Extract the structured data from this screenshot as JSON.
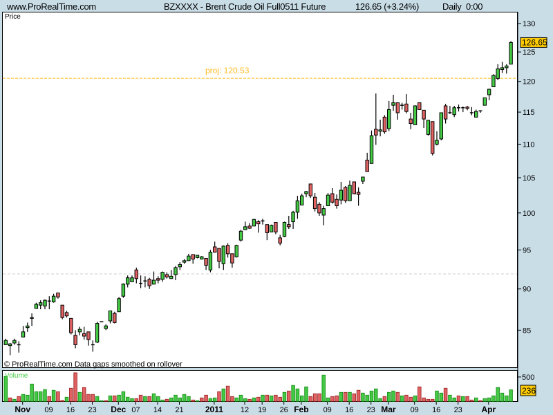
{
  "header": {
    "site": "www.ProRealTime.com",
    "title": "BZXXXX - Brent Crude Oil Full0511 Future",
    "quote": "126.65 (+3.24%)",
    "period": "Daily  0:00"
  },
  "price_panel": {
    "label": "Price",
    "footer": "© ProRealTime.com  Data gaps smoothed on rollover",
    "last_price_label": "126.65",
    "projection_label": "proj: 120.53",
    "projection_value": 120.53,
    "reference_line_value": 91.9
  },
  "volume_panel": {
    "label": "Volume",
    "last_volume_label": "236",
    "tick_label": "500"
  },
  "colors": {
    "up": "#44c944",
    "down": "#e06262",
    "projection": "#ffbb22",
    "reference": "#cccccc",
    "label_bg": "#ffcc00",
    "volume_text": "#44cc44",
    "axis_bg": "#c9dde7"
  },
  "chart_data": {
    "type": "candlestick",
    "y_scale": "log",
    "y_range": [
      80.7,
      132.1
    ],
    "y_ticks": [
      85,
      90,
      95,
      100,
      105,
      110,
      115,
      120,
      125,
      130
    ],
    "volume_range": [
      0,
      627
    ],
    "volume_ticks": [
      500
    ],
    "x_labels": [
      {
        "label": "Nov",
        "bar": 4,
        "major": true
      },
      {
        "label": "09",
        "bar": 10
      },
      {
        "label": "16",
        "bar": 15
      },
      {
        "label": "23",
        "bar": 20
      },
      {
        "label": "Dec",
        "bar": 26,
        "major": true
      },
      {
        "label": "07",
        "bar": 30
      },
      {
        "label": "14",
        "bar": 35
      },
      {
        "label": "21",
        "bar": 40
      },
      {
        "label": "2011",
        "bar": 48,
        "major": true
      },
      {
        "label": "12",
        "bar": 55
      },
      {
        "label": "19",
        "bar": 59
      },
      {
        "label": "26",
        "bar": 64
      },
      {
        "label": "Feb",
        "bar": 68,
        "major": true
      },
      {
        "label": "09",
        "bar": 74
      },
      {
        "label": "16",
        "bar": 79
      },
      {
        "label": "23",
        "bar": 84
      },
      {
        "label": "Mar",
        "bar": 88,
        "major": true
      },
      {
        "label": "09",
        "bar": 94
      },
      {
        "label": "16",
        "bar": 99
      },
      {
        "label": "23",
        "bar": 104
      },
      {
        "label": "Apr",
        "bar": 111,
        "major": true
      }
    ],
    "ohlc_fields": [
      "open",
      "high",
      "low",
      "close"
    ],
    "candles": [
      [
        83.3,
        84.0,
        83.3,
        83.8
      ],
      [
        83.2,
        83.5,
        82.1,
        83.4
      ],
      [
        83.5,
        84.0,
        83.3,
        83.8
      ],
      [
        83.3,
        83.7,
        82.4,
        83.3
      ],
      [
        84.2,
        85.5,
        84.2,
        84.8
      ],
      [
        85.3,
        85.9,
        84.8,
        85.5
      ],
      [
        86.4,
        87.0,
        85.5,
        86.5
      ],
      [
        87.6,
        88.3,
        87.6,
        88.1
      ],
      [
        88.0,
        88.6,
        87.5,
        88.3
      ],
      [
        87.9,
        88.7,
        87.5,
        88.6
      ],
      [
        88.5,
        89.1,
        87.5,
        88.5
      ],
      [
        88.4,
        89.4,
        88.3,
        89.1
      ],
      [
        89.5,
        89.5,
        88.8,
        89.0
      ],
      [
        88.0,
        88.0,
        86.3,
        86.5
      ],
      [
        87.1,
        87.3,
        86.5,
        86.7
      ],
      [
        86.4,
        86.4,
        84.5,
        84.7
      ],
      [
        84.4,
        85.0,
        82.9,
        83.3
      ],
      [
        84.8,
        85.4,
        84.4,
        85.1
      ],
      [
        84.6,
        85.4,
        83.9,
        84.3
      ],
      [
        84.8,
        84.8,
        83.2,
        83.9
      ],
      [
        83.3,
        83.8,
        82.5,
        83.3
      ],
      [
        83.6,
        86.0,
        83.5,
        85.8
      ],
      [
        86.0,
        86.0,
        86.0,
        86.0
      ],
      [
        85.2,
        85.7,
        85.0,
        85.5
      ],
      [
        86.1,
        87.3,
        85.8,
        87.3
      ],
      [
        87.0,
        87.2,
        85.8,
        85.9
      ],
      [
        87.2,
        89.0,
        87.2,
        88.8
      ],
      [
        89.1,
        90.7,
        88.9,
        90.6
      ],
      [
        90.6,
        91.7,
        90.2,
        91.4
      ],
      [
        90.9,
        91.7,
        90.9,
        91.4
      ],
      [
        92.4,
        92.7,
        90.7,
        91.3
      ],
      [
        90.7,
        91.7,
        90.1,
        90.7
      ],
      [
        91.0,
        91.6,
        90.2,
        91.0
      ],
      [
        91.2,
        91.4,
        90.0,
        90.4
      ],
      [
        90.6,
        92.2,
        90.6,
        91.1
      ],
      [
        91.3,
        91.6,
        90.7,
        91.1
      ],
      [
        91.2,
        92.2,
        90.9,
        92.1
      ],
      [
        91.8,
        92.1,
        91.3,
        91.5
      ],
      [
        91.3,
        92.4,
        91.3,
        91.6
      ],
      [
        91.8,
        92.9,
        91.1,
        92.7
      ],
      [
        92.8,
        93.4,
        92.4,
        93.1
      ],
      [
        93.4,
        93.8,
        93.2,
        93.6
      ],
      [
        93.6,
        94.5,
        93.6,
        94.2
      ],
      [
        94.4,
        94.4,
        93.2,
        93.8
      ],
      [
        94.0,
        94.3,
        93.9,
        94.3
      ],
      [
        93.8,
        94.2,
        93.8,
        94.1
      ],
      [
        93.9,
        93.9,
        92.4,
        93.0
      ],
      [
        92.4,
        95.0,
        92.1,
        94.7
      ],
      [
        95.4,
        96.1,
        94.7,
        94.7
      ],
      [
        95.2,
        95.2,
        92.6,
        93.5
      ],
      [
        93.2,
        95.6,
        92.4,
        95.5
      ],
      [
        95.6,
        95.9,
        94.0,
        94.5
      ],
      [
        94.5,
        94.5,
        92.7,
        93.3
      ],
      [
        94.1,
        95.7,
        94.0,
        95.6
      ],
      [
        96.3,
        97.7,
        96.1,
        97.5
      ],
      [
        97.7,
        98.8,
        97.7,
        98.1
      ],
      [
        98.2,
        98.6,
        97.8,
        97.9
      ],
      [
        98.2,
        99.2,
        98.2,
        99.1
      ],
      [
        98.8,
        99.0,
        97.3,
        98.5
      ],
      [
        98.9,
        99.2,
        98.4,
        98.9
      ],
      [
        98.4,
        98.4,
        96.3,
        97.3
      ],
      [
        97.4,
        98.4,
        97.4,
        98.3
      ],
      [
        98.7,
        98.7,
        97.1,
        97.4
      ],
      [
        96.6,
        97.0,
        95.6,
        95.9
      ],
      [
        96.8,
        98.8,
        96.7,
        98.7
      ],
      [
        98.4,
        99.6,
        97.8,
        98.1
      ],
      [
        98.8,
        100.3,
        97.8,
        100.1
      ],
      [
        100.1,
        102.4,
        99.2,
        101.7
      ],
      [
        101.1,
        102.7,
        101.1,
        102.4
      ],
      [
        102.7,
        103.1,
        102.2,
        103.0
      ],
      [
        104.1,
        104.1,
        102.1,
        102.4
      ],
      [
        102.2,
        102.8,
        100.2,
        100.6
      ],
      [
        101.2,
        101.5,
        99.6,
        100.0
      ],
      [
        99.7,
        101.0,
        98.3,
        100.6
      ],
      [
        101.0,
        102.8,
        101.0,
        102.5
      ],
      [
        102.7,
        103.5,
        101.3,
        101.5
      ],
      [
        101.9,
        102.6,
        100.6,
        101.0
      ],
      [
        101.8,
        104.4,
        101.2,
        103.2
      ],
      [
        103.6,
        103.8,
        101.4,
        101.7
      ],
      [
        101.7,
        104.6,
        101.7,
        103.9
      ],
      [
        104.4,
        104.4,
        102.6,
        102.7
      ],
      [
        102.9,
        103.6,
        101.0,
        102.6
      ],
      [
        104.5,
        105.1,
        104.1,
        105.1
      ],
      [
        107.6,
        108.7,
        105.9,
        105.9
      ],
      [
        107.1,
        112.1,
        107.1,
        111.3
      ],
      [
        112.3,
        118.0,
        109.9,
        111.4
      ],
      [
        112.0,
        113.8,
        111.2,
        112.2
      ],
      [
        114.2,
        114.5,
        111.6,
        111.9
      ],
      [
        112.4,
        116.8,
        112.0,
        115.4
      ],
      [
        116.1,
        117.8,
        115.2,
        116.5
      ],
      [
        116.5,
        116.5,
        113.8,
        114.9
      ],
      [
        116.1,
        116.5,
        115.4,
        116.1
      ],
      [
        116.3,
        117.9,
        114.8,
        115.1
      ],
      [
        113.9,
        114.9,
        112.3,
        113.2
      ],
      [
        113.0,
        116.1,
        113.0,
        116.0
      ],
      [
        116.5,
        116.5,
        115.4,
        115.4
      ],
      [
        115.3,
        115.3,
        112.5,
        113.9
      ],
      [
        111.5,
        113.7,
        111.3,
        113.7
      ],
      [
        113.5,
        113.5,
        108.3,
        108.6
      ],
      [
        110.0,
        112.0,
        109.8,
        110.6
      ],
      [
        110.8,
        114.9,
        110.6,
        114.9
      ],
      [
        116.0,
        116.3,
        113.2,
        113.9
      ],
      [
        114.9,
        116.0,
        114.7,
        114.9
      ],
      [
        114.6,
        116.0,
        114.2,
        115.7
      ],
      [
        115.7,
        116.2,
        115.1,
        115.7
      ],
      [
        115.7,
        115.9,
        115.0,
        115.7
      ],
      [
        115.8,
        116.0,
        115.3,
        115.6
      ],
      [
        114.9,
        115.8,
        114.5,
        114.9
      ],
      [
        114.2,
        115.4,
        114.2,
        115.1
      ],
      [
        115.2,
        115.3,
        114.9,
        115.2
      ],
      [
        116.1,
        117.3,
        116.1,
        117.3
      ],
      [
        117.8,
        118.8,
        116.9,
        118.7
      ],
      [
        119.1,
        121.2,
        119.1,
        121.0
      ],
      [
        120.5,
        122.9,
        120.2,
        122.1
      ],
      [
        122.0,
        123.3,
        121.4,
        122.3
      ],
      [
        122.3,
        122.9,
        121.3,
        122.6
      ],
      [
        122.9,
        126.9,
        122.9,
        126.65
      ]
    ],
    "volume": [
      510,
      71,
      42,
      99,
      142,
      127,
      354,
      198,
      198,
      241,
      99,
      227,
      198,
      19,
      85,
      269,
      585,
      184,
      283,
      142,
      142,
      99,
      14,
      14,
      113,
      113,
      127,
      198,
      85,
      57,
      57,
      127,
      99,
      99,
      156,
      99,
      28,
      42,
      71,
      127,
      71,
      142,
      99,
      28,
      14,
      71,
      127,
      57,
      71,
      198,
      255,
      312,
      99,
      71,
      127,
      57,
      42,
      71,
      85,
      127,
      127,
      113,
      127,
      85,
      184,
      212,
      326,
      255,
      113,
      297,
      99,
      156,
      156,
      538,
      71,
      99,
      113,
      184,
      184,
      184,
      156,
      227,
      170,
      127,
      212,
      255,
      57,
      99,
      184,
      212,
      184,
      113,
      127,
      85,
      113,
      297,
      71,
      42,
      42,
      212,
      170,
      269,
      127,
      71,
      113,
      99,
      99,
      28,
      71,
      14,
      57,
      71,
      113,
      283,
      170,
      113,
      236
    ],
    "volume_direction": [
      "up",
      "down",
      "up",
      "down",
      "up",
      "up",
      "up",
      "up",
      "up",
      "up",
      "down",
      "up",
      "down",
      "down",
      "up",
      "down",
      "down",
      "up",
      "down",
      "down",
      "down",
      "up",
      "up",
      "down",
      "up",
      "down",
      "up",
      "up",
      "up",
      "up",
      "down",
      "down",
      "up",
      "down",
      "up",
      "up",
      "up",
      "down",
      "up",
      "up",
      "up",
      "up",
      "up",
      "down",
      "up",
      "down",
      "down",
      "up",
      "up",
      "down",
      "up",
      "down",
      "down",
      "up",
      "up",
      "up",
      "down",
      "up",
      "down",
      "up",
      "down",
      "up",
      "down",
      "down",
      "up",
      "down",
      "up",
      "up",
      "up",
      "up",
      "down",
      "down",
      "down",
      "up",
      "up",
      "down",
      "down",
      "up",
      "down",
      "up",
      "down",
      "down",
      "up",
      "up",
      "up",
      "up",
      "up",
      "down",
      "up",
      "up",
      "down",
      "up",
      "down",
      "down",
      "up",
      "down",
      "down",
      "down",
      "down",
      "up",
      "up",
      "down",
      "up",
      "up",
      "down",
      "up",
      "down",
      "down",
      "up",
      "down",
      "up",
      "up",
      "up",
      "up",
      "up",
      "up",
      "up"
    ]
  }
}
